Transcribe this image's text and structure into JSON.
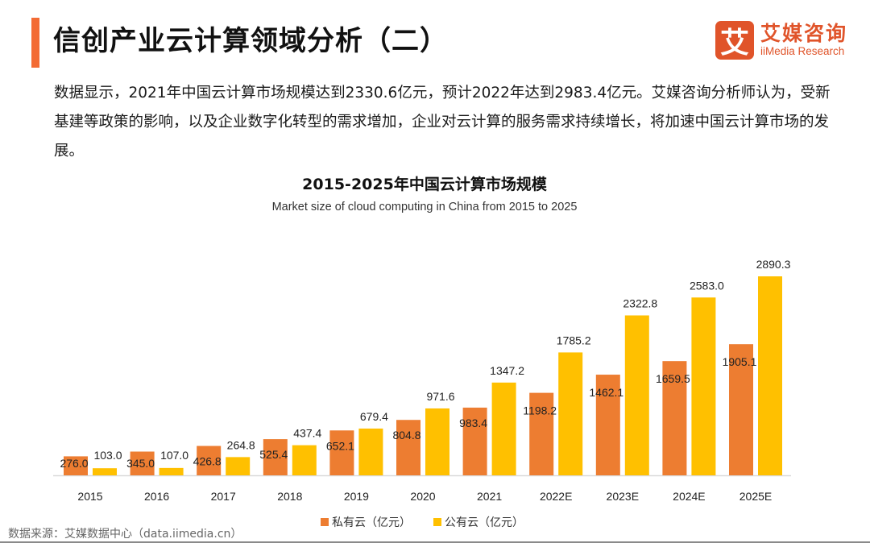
{
  "header": {
    "title": "信创产业云计算领域分析（二）",
    "logo": {
      "mark": "艾",
      "name_cn": "艾媒咨询",
      "name_en": "iiMedia Research",
      "color": "#e0542a"
    },
    "accent_color": "#f36b34"
  },
  "summary": "数据显示，2021年中国云计算市场规模达到2330.6亿元，预计2022年达到2983.4亿元。艾媒咨询分析师认为，受新基建等政策的影响，以及企业数字化转型的需求增加，企业对云计算的服务需求持续增长，将加速中国云计算市场的发展。",
  "chart_data": {
    "type": "bar",
    "title": "2015-2025年中国云计算市场规模",
    "subtitle": "Market size of cloud computing in China from 2015 to 2025",
    "xlabel": "",
    "ylabel": "",
    "ylim": [
      0,
      2890.3
    ],
    "grid": false,
    "legend_position": "bottom",
    "categories": [
      "2015",
      "2016",
      "2017",
      "2018",
      "2019",
      "2020",
      "2021",
      "2022E",
      "2023E",
      "2024E",
      "2025E"
    ],
    "series": [
      {
        "name": "私有云（亿元）",
        "color": "#ed7d31",
        "values": [
          276.0,
          345.0,
          426.8,
          525.4,
          652.1,
          804.8,
          983.4,
          1198.2,
          1462.1,
          1659.5,
          1905.1
        ],
        "labels": [
          "276.0",
          "345.0",
          "426.8",
          "525.4",
          "652.1",
          "804.8",
          "983.4",
          "1198.2",
          "1462.1",
          "1659.5",
          "1905.1"
        ]
      },
      {
        "name": "公有云（亿元）",
        "color": "#ffc000",
        "values": [
          103.0,
          107.0,
          264.8,
          437.4,
          679.4,
          971.6,
          1347.2,
          1785.2,
          2322.8,
          2583.0,
          2890.3
        ],
        "labels": [
          "103.0",
          "107.0",
          "264.8",
          "437.4",
          "679.4",
          "971.6",
          "1347.2",
          "1785.2",
          "2322.8",
          "2583.0",
          "2890.3"
        ]
      }
    ]
  },
  "legend": [
    {
      "label": "私有云（亿元）",
      "color": "#ed7d31"
    },
    {
      "label": "公有云（亿元）",
      "color": "#ffc000"
    }
  ],
  "footer": {
    "source": "数据来源：艾媒数据中心（data.iimedia.cn）"
  }
}
